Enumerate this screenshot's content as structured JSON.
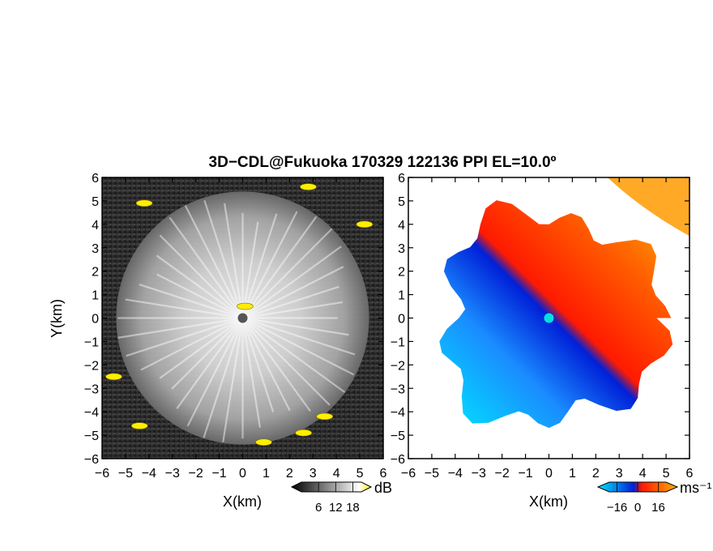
{
  "figure": {
    "title": "3D−CDL@Fukuoka 170329 122136 PPI EL=10.0º"
  },
  "chart_data": [
    {
      "type": "heatmap",
      "panel": "reflectivity",
      "xlabel": "X(km)",
      "ylabel": "Y(km)",
      "xlim": [
        -6,
        6
      ],
      "ylim": [
        -6,
        6
      ],
      "xticks": [
        "−6",
        "−5",
        "−4",
        "−3",
        "−2",
        "−1",
        "0",
        "1",
        "2",
        "3",
        "4",
        "5",
        "6"
      ],
      "yticks": [
        "−6",
        "−5",
        "−4",
        "−3",
        "−2",
        "−1",
        "0",
        "1",
        "2",
        "3",
        "4",
        "5",
        "6"
      ],
      "colormap": [
        "#000000",
        "#ffffff",
        "#ffee00"
      ],
      "colorbar": {
        "unit": "dB",
        "ticks": [
          6,
          12,
          18
        ],
        "tick_labels": [
          "6",
          "12",
          "18"
        ]
      },
      "radar_center": [
        0,
        0
      ],
      "echo_radius_km": 5.4,
      "strong_echo_regions": [
        {
          "x": -4.2,
          "y": 4.9
        },
        {
          "x": 2.8,
          "y": 5.6
        },
        {
          "x": 5.2,
          "y": 4.0
        },
        {
          "x": 0.9,
          "y": -5.3
        },
        {
          "x": 2.6,
          "y": -4.9
        },
        {
          "x": 3.5,
          "y": -4.2
        },
        {
          "x": -5.5,
          "y": -2.5
        },
        {
          "x": -4.4,
          "y": -4.6
        },
        {
          "x": 0.1,
          "y": 0.5
        }
      ]
    },
    {
      "type": "heatmap",
      "panel": "doppler-velocity",
      "xlabel": "X(km)",
      "ylabel": "",
      "xlim": [
        -6,
        6
      ],
      "ylim": [
        -6,
        6
      ],
      "xticks": [
        "−6",
        "−5",
        "−4",
        "−3",
        "−2",
        "−1",
        "0",
        "1",
        "2",
        "3",
        "4",
        "5",
        "6"
      ],
      "yticks": [
        "−6",
        "−5",
        "−4",
        "−3",
        "−2",
        "−1",
        "0",
        "1",
        "2",
        "3",
        "4",
        "5",
        "6"
      ],
      "colormap": [
        "#00e8ff",
        "#0030e0",
        "#ff1a00",
        "#ffb000"
      ],
      "colorbar": {
        "unit": "ms⁻¹",
        "ticks": [
          -16,
          0,
          16
        ],
        "tick_labels": [
          "−16",
          "0",
          "16"
        ]
      },
      "radar_center": [
        0,
        0
      ],
      "approaching_side": "south-west",
      "receding_side": "north-east"
    }
  ]
}
